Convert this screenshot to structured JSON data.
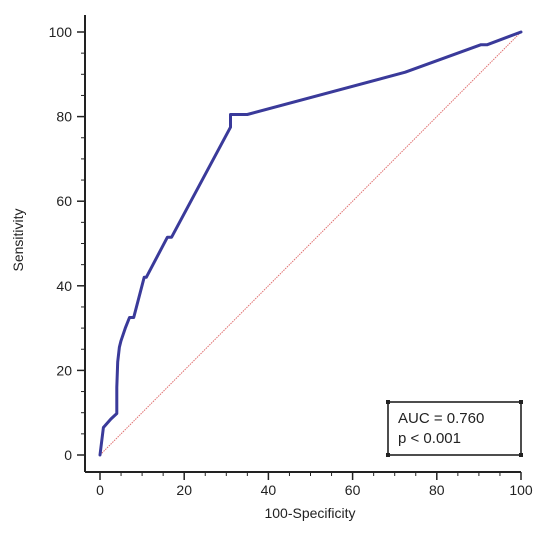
{
  "chart_data": {
    "type": "line",
    "title": "",
    "xlabel": "100-Specificity",
    "ylabel": "Sensitivity",
    "xlim": [
      0,
      100
    ],
    "ylim": [
      0,
      100
    ],
    "x_ticks": [
      0,
      20,
      40,
      60,
      80,
      100
    ],
    "y_ticks": [
      0,
      20,
      40,
      60,
      80,
      100
    ],
    "grid": false,
    "series": [
      {
        "color": "#3a3a9a",
        "x": [
          0,
          0.8,
          2.6,
          4,
          4,
          4.2,
          4.6,
          5,
          6,
          7,
          8,
          10.5,
          11,
          16,
          17,
          31,
          31,
          35,
          72.5,
          90.5,
          92,
          100
        ],
        "y": [
          0,
          6.5,
          8.5,
          9.8,
          16,
          22,
          25.5,
          27,
          30,
          32.5,
          32.5,
          42,
          42,
          51.5,
          51.5,
          77.5,
          80.5,
          80.5,
          90.5,
          97,
          97,
          100
        ]
      },
      {
        "style": "diagonal-reference",
        "color": "#e07070",
        "x": [
          0,
          100
        ],
        "y": [
          0,
          100
        ]
      }
    ],
    "annotations": [
      {
        "line1": "AUC = 0.760",
        "line2": "p < 0.001",
        "position": "bottom-right"
      }
    ]
  }
}
